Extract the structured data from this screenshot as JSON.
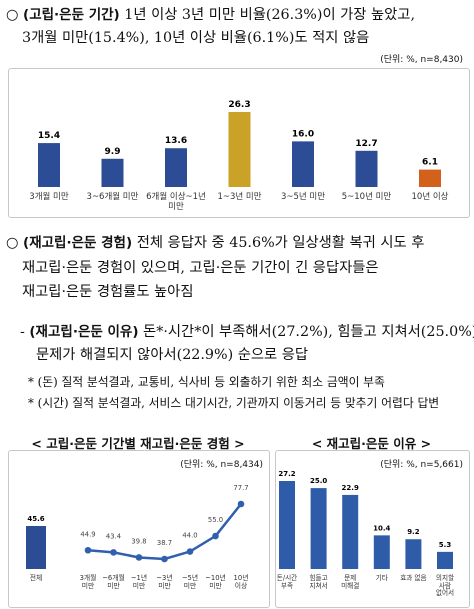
{
  "paragraphs": [
    {
      "bullet": "○",
      "lead": "(고립·은둔 기간)",
      "lines": [
        "1년 이상 3년 미만 비율(26.3%)이 가장 높았고,",
        "3개월 미만(15.4%), 10년 이상 비율(6.1%)도 적지 않음"
      ]
    },
    {
      "bullet": "○",
      "lead": "(재고립·은둔 경험)",
      "lines": [
        "전체 응답자 중 45.6%가 일상생활 복귀 시도 후",
        "재고립·은둔 경험이 있으며, 고립·은둔 기간이 긴 응답자들은",
        "재고립·은둔 경험률도 높아짐"
      ]
    },
    {
      "bullet": "-",
      "lead": "(재고립·은둔 이유)",
      "lines": [
        "돈*·시간*이 부족해서(27.2%), 힘들고 지쳐서(25.0%),",
        "문제가 해결되지 않아서(22.9%) 순으로 응답"
      ]
    }
  ],
  "notes": [
    "* (돈) 질적 분석결과, 교통비, 식사비 등 외출하기 위한 최소 금액이 부족",
    "* (시간) 질적 분석결과, 서비스 대기시간, 기관까지 이동거리 등 맞추기 어렵다 답변"
  ],
  "chart_data": [
    {
      "type": "bar",
      "unit_label": "(단위: %, n=8,430)",
      "categories": [
        "3개월 미만",
        "3~6개월 미만",
        "6개월 이상~1년 미만",
        "1~3년 미만",
        "3~5년 미만",
        "5~10년 미만",
        "10년 이상"
      ],
      "values": [
        15.4,
        9.9,
        13.6,
        26.3,
        16.0,
        12.7,
        6.1
      ],
      "value_labels": [
        "15.4",
        "9.9",
        "13.6",
        "26.3",
        "16.0",
        "12.7",
        "6.1"
      ],
      "colors": [
        "#2c4d96",
        "#2c4d96",
        "#2c4d96",
        "#c9a227",
        "#2c4d96",
        "#2c4d96",
        "#d2611c"
      ]
    },
    {
      "type": "combo",
      "title": "< 고립·은둔 기간별 재고립·은둔 경험 >",
      "unit_label": "(단위: %, n=8,434)",
      "categories": [
        "전체",
        "3개월 미만",
        "~6개월 미만",
        "~1년 미만",
        "~3년 미만",
        "~5년 미만",
        "~10년 미만",
        "10년 이상"
      ],
      "series": [
        {
          "type": "bar",
          "color": "#2c4d96",
          "values": [
            45.6,
            null,
            null,
            null,
            null,
            null,
            null,
            null
          ],
          "value_labels": [
            "45.6",
            null,
            null,
            null,
            null,
            null,
            null,
            null
          ]
        },
        {
          "type": "line",
          "color": "#2f5fae",
          "values": [
            null,
            44.9,
            43.4,
            39.8,
            38.7,
            44.0,
            55.0,
            77.7
          ],
          "value_labels": [
            null,
            "44.9",
            "43.4",
            "39.8",
            "38.7",
            "44.0",
            "55.0",
            "77.7"
          ]
        }
      ]
    },
    {
      "type": "bar",
      "title": "< 재고립·은둔 이유 >",
      "unit_label": "(단위: %, n=5,661)",
      "categories": [
        "돈/시간 부족",
        "힘들고 지쳐서",
        "문제 미해결",
        "기타",
        "효과 없음",
        "의지할 사람 없어서"
      ],
      "values": [
        27.2,
        25.0,
        22.9,
        10.4,
        9.2,
        5.3
      ],
      "value_labels": [
        "27.2",
        "25.0",
        "22.9",
        "10.4",
        "9.2",
        "5.3"
      ],
      "color": "#2e5ca8"
    }
  ]
}
